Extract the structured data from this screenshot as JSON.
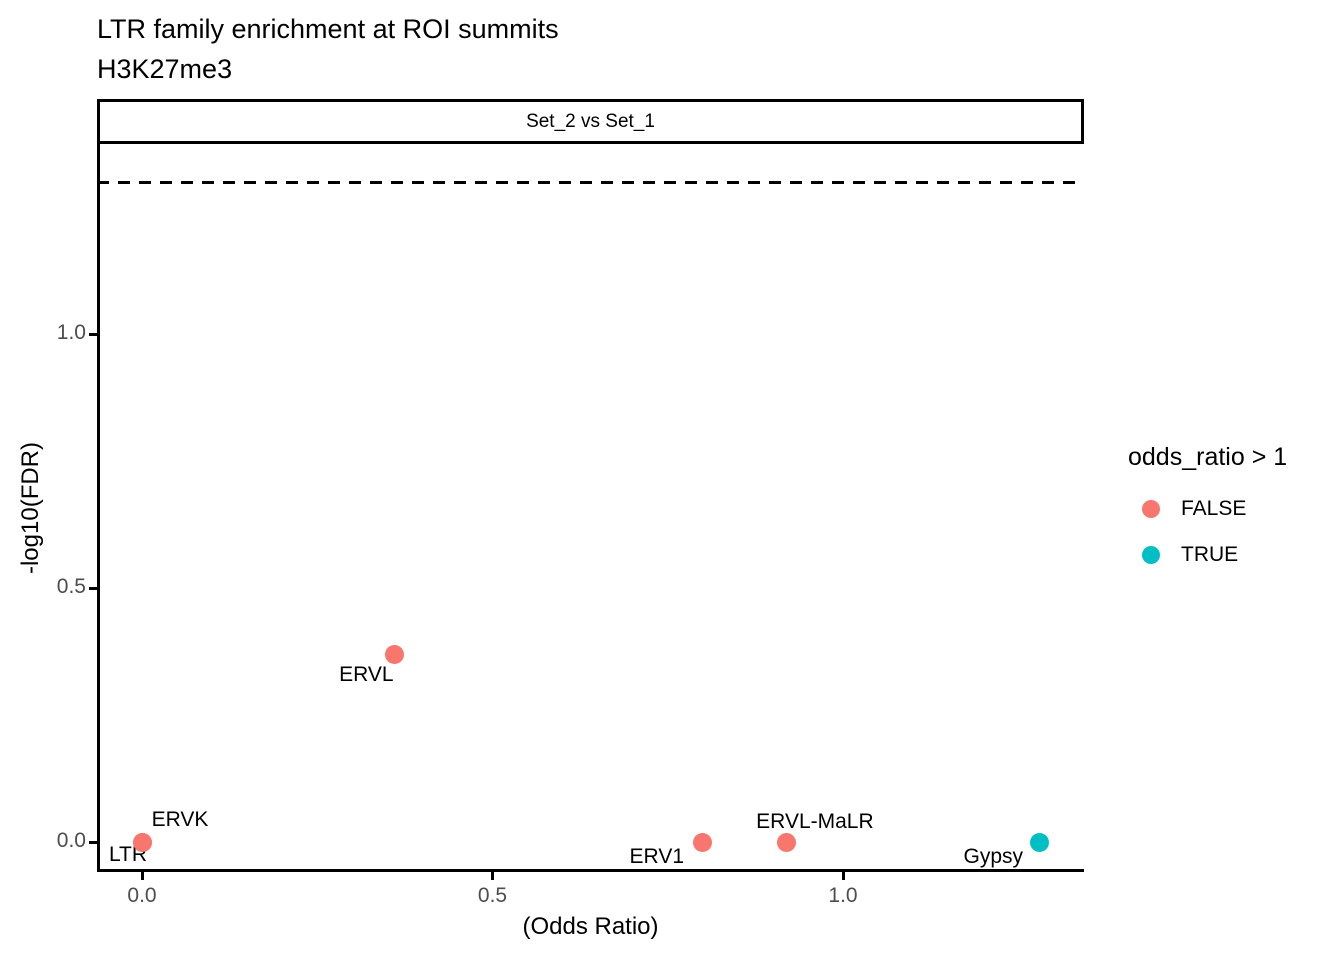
{
  "header": {
    "title": "LTR family enrichment at ROI summits",
    "subtitle": "H3K27me3"
  },
  "facet": {
    "label": "Set_2 vs Set_1"
  },
  "legend": {
    "title": "odds_ratio > 1",
    "items": [
      {
        "label": "FALSE",
        "color": "#F8766D"
      },
      {
        "label": "TRUE",
        "color": "#00BFC4"
      }
    ]
  },
  "chart_data": {
    "type": "scatter",
    "title": "LTR family enrichment at ROI summits",
    "subtitle": "H3K27me3",
    "facet_label": "Set_2 vs Set_1",
    "xlabel": "(Odds Ratio)",
    "ylabel": "-log10(FDR)",
    "xlim": [
      -0.065,
      1.34
    ],
    "ylim": [
      -0.06,
      1.37
    ],
    "x_ticks": [
      {
        "value": 0.0,
        "label": "0.0"
      },
      {
        "value": 0.5,
        "label": "0.5"
      },
      {
        "value": 1.0,
        "label": "1.0"
      }
    ],
    "y_ticks": [
      {
        "value": 0.0,
        "label": "0.0"
      },
      {
        "value": 0.5,
        "label": "0.5"
      },
      {
        "value": 1.0,
        "label": "1.0"
      }
    ],
    "grid": false,
    "legend_position": "right",
    "color_by": "odds_ratio > 1",
    "colors": {
      "false": "#F8766D",
      "true": "#00BFC4"
    },
    "threshold_line": {
      "y": 1.3,
      "style": "dashed",
      "color": "#000000"
    },
    "points": [
      {
        "label": "LTR",
        "x": 0.0,
        "y": 0.0,
        "odds_ratio_gt_1": false,
        "label_offset": [
          -14,
          13
        ]
      },
      {
        "label": "ERVK",
        "x": 0.0,
        "y": 0.0,
        "odds_ratio_gt_1": false,
        "label_offset": [
          38,
          -22
        ]
      },
      {
        "label": "ERVL",
        "x": 0.36,
        "y": 0.37,
        "odds_ratio_gt_1": false,
        "label_offset": [
          -28,
          21
        ]
      },
      {
        "label": "ERV1",
        "x": 0.8,
        "y": 0.0,
        "odds_ratio_gt_1": false,
        "label_offset": [
          -46,
          15
        ]
      },
      {
        "label": "ERVL-MaLR",
        "x": 0.92,
        "y": 0.0,
        "odds_ratio_gt_1": false,
        "label_offset": [
          28,
          -20
        ]
      },
      {
        "label": "Gypsy",
        "x": 1.28,
        "y": 0.0,
        "odds_ratio_gt_1": true,
        "label_offset": [
          -46,
          15
        ]
      }
    ]
  }
}
